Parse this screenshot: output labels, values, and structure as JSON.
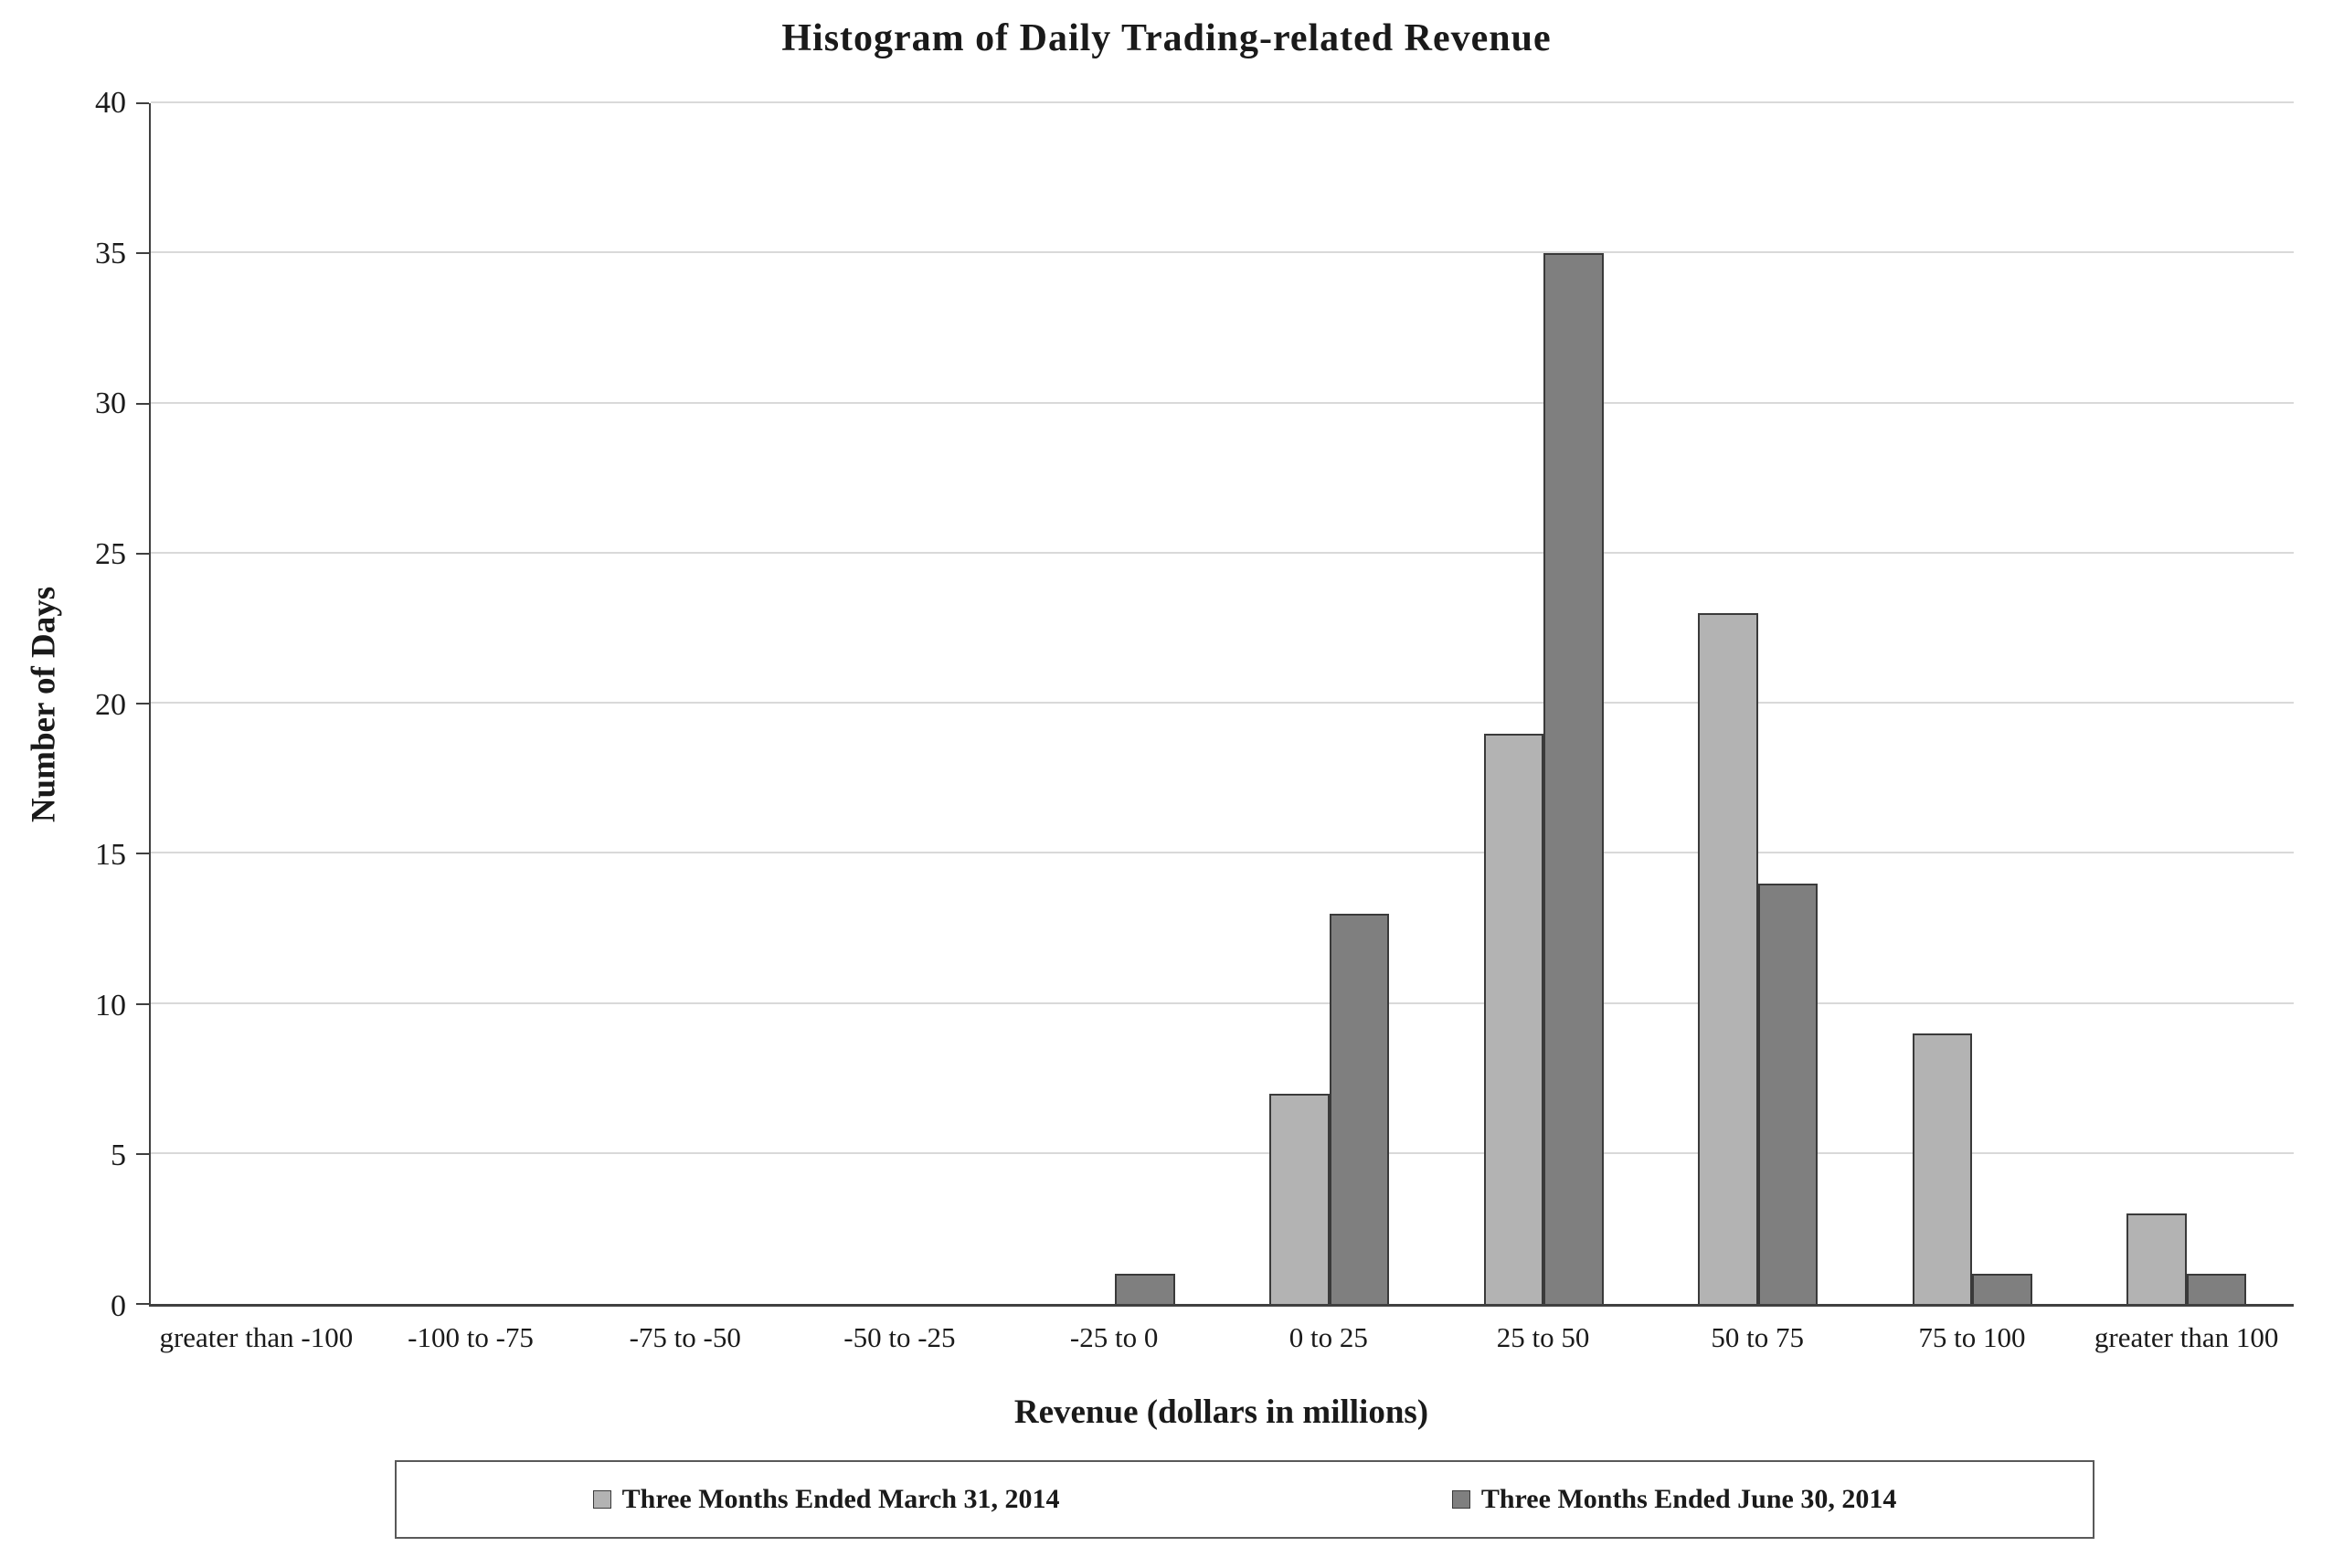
{
  "chart_data": {
    "type": "bar",
    "title": "Histogram of Daily Trading-related Revenue",
    "xlabel": "Revenue (dollars in millions)",
    "ylabel": "Number of Days",
    "categories": [
      "greater than -100",
      "-100 to -75",
      "-75 to -50",
      "-50 to -25",
      "-25 to 0",
      "0 to 25",
      "25 to 50",
      "50 to 75",
      "75 to 100",
      "greater than 100"
    ],
    "series": [
      {
        "name": "Three Months Ended March 31, 2014",
        "color": "#b3b3b3",
        "values": [
          0,
          0,
          0,
          0,
          0,
          7,
          19,
          23,
          9,
          3
        ]
      },
      {
        "name": "Three Months Ended June 30, 2014",
        "color": "#7f7f7f",
        "values": [
          0,
          0,
          0,
          0,
          1,
          13,
          35,
          14,
          1,
          1
        ]
      }
    ],
    "ylim": [
      0,
      40
    ],
    "y_ticks": [
      0,
      5,
      10,
      15,
      20,
      25,
      30,
      35,
      40
    ],
    "grid": "horizontal",
    "legend_position": "bottom"
  },
  "colors": {
    "series_march": "#b3b3b3",
    "series_june": "#7f7f7f",
    "bar_border": "#3a3a3a",
    "gridline": "#d9d9d9",
    "axis": "#404040",
    "background": "#ffffff"
  }
}
